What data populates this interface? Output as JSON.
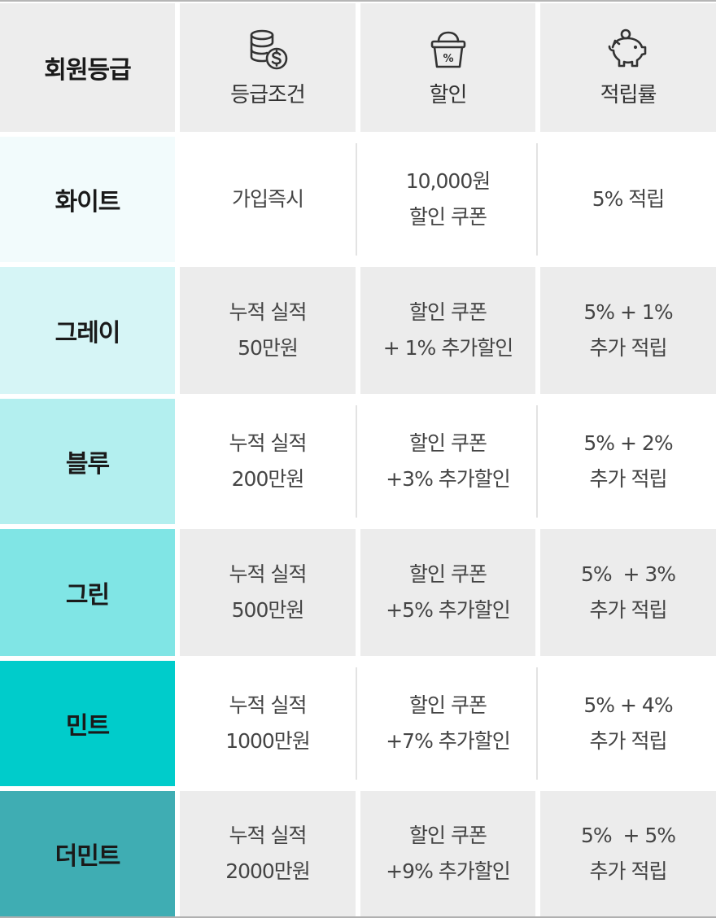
{
  "header": {
    "grade": "회원등급",
    "condition": "등급조건",
    "discount": "할인",
    "rate": "적립률",
    "icons": [
      "coins-dollar-icon",
      "percent-basket-icon",
      "piggy-bank-icon"
    ]
  },
  "rows": [
    {
      "grade": "화이트",
      "color": "#f2fbfc",
      "cond": [
        "가입즉시"
      ],
      "disc": [
        "10,000원",
        "할인 쿠폰"
      ],
      "rate": [
        "5% 적립"
      ]
    },
    {
      "grade": "그레이",
      "color": "#d6f5f6",
      "cond": [
        "누적 실적",
        "50만원"
      ],
      "disc": [
        "할인 쿠폰",
        "+ 1% 추가할인"
      ],
      "rate": [
        "5% + 1%",
        "추가 적립"
      ]
    },
    {
      "grade": "블루",
      "color": "#b3efef",
      "cond": [
        "누적 실적",
        "200만원"
      ],
      "disc": [
        "할인 쿠폰",
        "+3% 추가할인"
      ],
      "rate": [
        "5% + 2%",
        "추가 적립"
      ]
    },
    {
      "grade": "그린",
      "color": "#80e5e5",
      "cond": [
        "누적 실적",
        "500만원"
      ],
      "disc": [
        "할인 쿠폰",
        "+5% 추가할인"
      ],
      "rate": [
        "5%  + 3%",
        "추가 적립"
      ]
    },
    {
      "grade": "민트",
      "color": "#00cccb",
      "cond": [
        "누적 실적",
        "1000만원"
      ],
      "disc": [
        "할인 쿠폰",
        "+7% 추가할인"
      ],
      "rate": [
        "5% + 4%",
        "추가 적립"
      ]
    },
    {
      "grade": "더민트",
      "color": "#3fadb3",
      "cond": [
        "누적 실적",
        "2000만원"
      ],
      "disc": [
        "할인 쿠폰",
        "+9% 추가할인"
      ],
      "rate": [
        "5%  + 5%",
        "추가 적립"
      ]
    }
  ]
}
